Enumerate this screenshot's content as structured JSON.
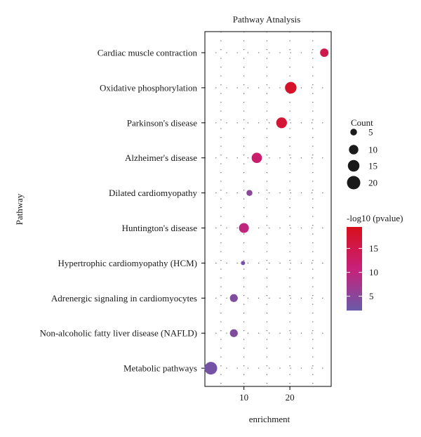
{
  "chart_data": {
    "type": "scatter",
    "title": "Pathway Atnalysis",
    "xlabel": "enrichment",
    "ylabel": "Pathway",
    "xlim": [
      1.5,
      29
    ],
    "x_ticks": [
      10,
      20
    ],
    "x_tick_labels": [
      "10",
      "20"
    ],
    "grid": "dotted",
    "categories": [
      "Cardiac muscle contraction",
      "Oxidative phosphorylation",
      "Parkinson's disease",
      "Alzheimer's disease",
      "Dilated cardiomyopathy",
      "Huntington's disease",
      "Hypertrophic cardiomyopathy (HCM)",
      "Adrenergic signaling in cardiomyocytes",
      "Non-alcoholic fatty liver disease (NAFLD)",
      "Metabolic pathways"
    ],
    "points": [
      {
        "pathway": "Cardiac muscle contraction",
        "enrichment": 27.5,
        "count": 8,
        "neg_log10_pvalue": 15
      },
      {
        "pathway": "Oxidative phosphorylation",
        "enrichment": 20.2,
        "count": 15,
        "neg_log10_pvalue": 18
      },
      {
        "pathway": "Parkinson's disease",
        "enrichment": 18.2,
        "count": 13,
        "neg_log10_pvalue": 17
      },
      {
        "pathway": "Alzheimer's disease",
        "enrichment": 12.8,
        "count": 12,
        "neg_log10_pvalue": 12
      },
      {
        "pathway": "Dilated cardiomyopathy",
        "enrichment": 11.2,
        "count": 4,
        "neg_log10_pvalue": 5
      },
      {
        "pathway": "Huntington's disease",
        "enrichment": 10.0,
        "count": 11,
        "neg_log10_pvalue": 10
      },
      {
        "pathway": "Hypertrophic cardiomyopathy (HCM)",
        "enrichment": 9.8,
        "count": 2,
        "neg_log10_pvalue": 3
      },
      {
        "pathway": "Adrenergic signaling in cardiomyocytes",
        "enrichment": 7.8,
        "count": 7,
        "neg_log10_pvalue": 4
      },
      {
        "pathway": "Non-alcoholic fatty liver disease (NAFLD)",
        "enrichment": 7.8,
        "count": 7,
        "neg_log10_pvalue": 4
      },
      {
        "pathway": "Metabolic pathways",
        "enrichment": 2.8,
        "count": 18,
        "neg_log10_pvalue": 3
      }
    ],
    "size_legend": {
      "title": "Count",
      "values": [
        5,
        10,
        15,
        20
      ],
      "labels": [
        "5",
        "10",
        "15",
        "20"
      ]
    },
    "color_legend": {
      "title": "-log10 (pvalue)",
      "ticks": [
        5,
        10,
        15
      ],
      "labels": [
        "5",
        "10",
        "15"
      ],
      "range": [
        2,
        19.5
      ],
      "low_color": "#6a5aa9",
      "mid_color": "#c8207a",
      "high_color": "#d7101b"
    }
  }
}
